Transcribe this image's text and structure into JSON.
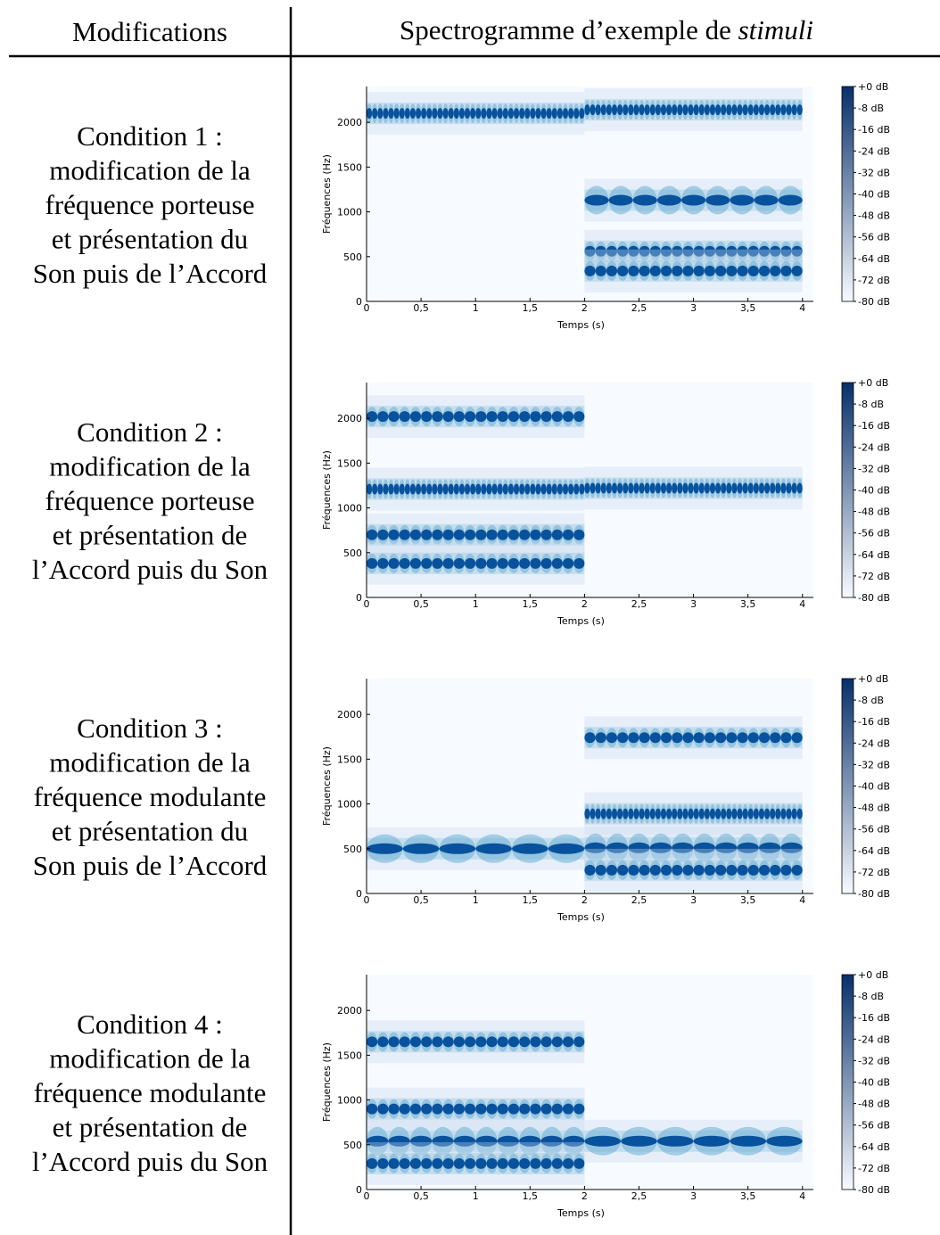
{
  "table": {
    "header": [
      "Modifications",
      "Spectrogramme d’exemple de",
      "stimuli"
    ],
    "rows": [
      {
        "condition": [
          "Condition 1 :",
          "modification de la",
          "fréquence porteuse",
          "et présentation du",
          "Son puis de l’Accord"
        ],
        "spectrogram": {
          "bands": [
            {
              "freq": 2100,
              "start": 0,
              "end": 2,
              "pulses": 40
            },
            {
              "freq": 2140,
              "start": 2,
              "end": 4,
              "pulses": 40
            },
            {
              "freq": 1130,
              "start": 2,
              "end": 4,
              "pulses": 9
            },
            {
              "freq": 560,
              "start": 2,
              "end": 4,
              "pulses": 20
            },
            {
              "freq": 340,
              "start": 2,
              "end": 4,
              "pulses": 20
            }
          ]
        }
      },
      {
        "condition": [
          "Condition 2 :",
          "modification de la",
          "fréquence porteuse",
          "et présentation de",
          "l’Accord puis du Son"
        ],
        "spectrogram": {
          "bands": [
            {
              "freq": 2020,
              "start": 0,
              "end": 2,
              "pulses": 20
            },
            {
              "freq": 1210,
              "start": 0,
              "end": 2,
              "pulses": 40
            },
            {
              "freq": 700,
              "start": 0,
              "end": 2,
              "pulses": 20
            },
            {
              "freq": 380,
              "start": 0,
              "end": 2,
              "pulses": 20
            },
            {
              "freq": 1220,
              "start": 2,
              "end": 4,
              "pulses": 40
            }
          ]
        }
      },
      {
        "condition": [
          "Condition 3 :",
          "modification de la",
          "fréquence modulante",
          "et présentation du",
          "Son puis de l’Accord"
        ],
        "spectrogram": {
          "bands": [
            {
              "freq": 500,
              "start": 0,
              "end": 2,
              "pulses": 6
            },
            {
              "freq": 1740,
              "start": 2,
              "end": 4,
              "pulses": 20
            },
            {
              "freq": 890,
              "start": 2,
              "end": 4,
              "pulses": 40
            },
            {
              "freq": 510,
              "start": 2,
              "end": 4,
              "pulses": 10
            },
            {
              "freq": 260,
              "start": 2,
              "end": 4,
              "pulses": 20
            }
          ]
        }
      },
      {
        "condition": [
          "Condition 4 :",
          "modification de la",
          "fréquence modulante",
          "et présentation de",
          "l’Accord puis du Son"
        ],
        "spectrogram": {
          "bands": [
            {
              "freq": 1650,
              "start": 0,
              "end": 2,
              "pulses": 20
            },
            {
              "freq": 900,
              "start": 0,
              "end": 2,
              "pulses": 20
            },
            {
              "freq": 540,
              "start": 0,
              "end": 2,
              "pulses": 10
            },
            {
              "freq": 290,
              "start": 0,
              "end": 2,
              "pulses": 20
            },
            {
              "freq": 540,
              "start": 2,
              "end": 4,
              "pulses": 6
            }
          ]
        }
      }
    ]
  },
  "spectrogram_axes": {
    "xlabel": "Temps (s)",
    "ylabel": "Fréquences (Hz)",
    "xlim": [
      0,
      4.1
    ],
    "ylim": [
      0,
      2400
    ],
    "xticks": [
      0,
      {
        "value": 0.5,
        "label": "0,5"
      },
      1,
      {
        "value": 1.5,
        "label": "1,5"
      },
      2,
      {
        "value": 2.5,
        "label": "2,5"
      },
      3,
      {
        "value": 3.5,
        "label": "3,5"
      },
      4
    ],
    "yticks": [
      0,
      500,
      1000,
      1500,
      2000
    ],
    "clim": [
      -80,
      0
    ],
    "colormap": [
      "#f7fbff",
      "#08306b"
    ],
    "cticks": [
      {
        "value": 0,
        "label": "+0 dB"
      },
      {
        "value": -8,
        "label": "-8 dB"
      },
      {
        "value": -16,
        "label": "-16 dB"
      },
      {
        "value": -24,
        "label": "-24 dB"
      },
      {
        "value": -32,
        "label": "-32 dB"
      },
      {
        "value": -40,
        "label": "-40 dB"
      },
      {
        "value": -48,
        "label": "-48 dB"
      },
      {
        "value": -56,
        "label": "-56 dB"
      },
      {
        "value": -64,
        "label": "-64 dB"
      },
      {
        "value": -72,
        "label": "-72 dB"
      },
      {
        "value": -80,
        "label": "-80 dB"
      }
    ]
  }
}
